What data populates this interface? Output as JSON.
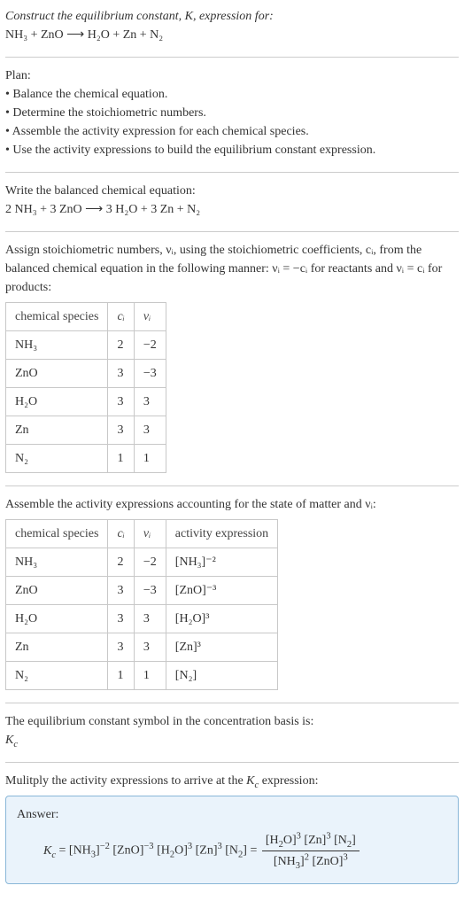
{
  "header": {
    "title_line1": "Construct the equilibrium constant, K, expression for:",
    "title_line2": "NH₃ + ZnO ⟶ H₂O + Zn + N₂"
  },
  "plan": {
    "heading": "Plan:",
    "items": [
      "• Balance the chemical equation.",
      "• Determine the stoichiometric numbers.",
      "• Assemble the activity expression for each chemical species.",
      "• Use the activity expressions to build the equilibrium constant expression."
    ]
  },
  "balanced": {
    "heading": "Write the balanced chemical equation:",
    "equation": "2 NH₃ + 3 ZnO ⟶ 3 H₂O + 3 Zn + N₂"
  },
  "stoich": {
    "intro": "Assign stoichiometric numbers, νᵢ, using the stoichiometric coefficients, cᵢ, from the balanced chemical equation in the following manner: νᵢ = −cᵢ for reactants and νᵢ = cᵢ for products:",
    "headers": [
      "chemical species",
      "cᵢ",
      "νᵢ"
    ],
    "rows": [
      [
        "NH₃",
        "2",
        "−2"
      ],
      [
        "ZnO",
        "3",
        "−3"
      ],
      [
        "H₂O",
        "3",
        "3"
      ],
      [
        "Zn",
        "3",
        "3"
      ],
      [
        "N₂",
        "1",
        "1"
      ]
    ]
  },
  "activity": {
    "intro": "Assemble the activity expressions accounting for the state of matter and νᵢ:",
    "headers": [
      "chemical species",
      "cᵢ",
      "νᵢ",
      "activity expression"
    ],
    "rows": [
      [
        "NH₃",
        "2",
        "−2",
        "[NH₃]⁻²"
      ],
      [
        "ZnO",
        "3",
        "−3",
        "[ZnO]⁻³"
      ],
      [
        "H₂O",
        "3",
        "3",
        "[H₂O]³"
      ],
      [
        "Zn",
        "3",
        "3",
        "[Zn]³"
      ],
      [
        "N₂",
        "1",
        "1",
        "[N₂]"
      ]
    ]
  },
  "symbol": {
    "intro": "The equilibrium constant symbol in the concentration basis is:",
    "value": "K𞁞"
  },
  "multiply": {
    "intro": "Mulitply the activity expressions to arrive at the K𞁞 expression:"
  },
  "answer": {
    "label": "Answer:",
    "lhs": "K𞁞 = [NH₃]⁻² [ZnO]⁻³ [H₂O]³ [Zn]³ [N₂] = ",
    "num": "[H₂O]³ [Zn]³ [N₂]",
    "den": "[NH₃]² [ZnO]³"
  },
  "colors": {
    "text": "#333333",
    "border": "#c8c8c8",
    "hr": "#cccccc",
    "answer_bg": "#eaf3fb",
    "answer_border": "#89b7d8"
  },
  "fonts": {
    "body_size_pt": 11,
    "family": "Georgia, serif"
  }
}
